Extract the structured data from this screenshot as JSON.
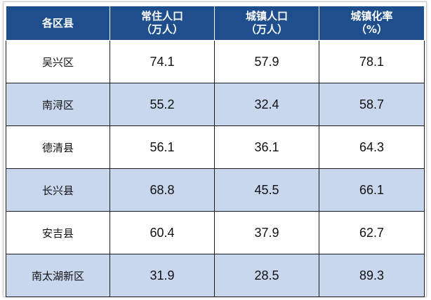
{
  "table": {
    "headers": [
      {
        "line1": "各区县",
        "line2": ""
      },
      {
        "line1": "常住人口",
        "line2": "（万人）"
      },
      {
        "line1": "城镇人口",
        "line2": "（万人）"
      },
      {
        "line1": "城镇化率",
        "line2": "（%）"
      }
    ],
    "rows": [
      {
        "name": "吴兴区",
        "population": "74.1",
        "urban": "57.9",
        "rate": "78.1"
      },
      {
        "name": "南浔区",
        "population": "55.2",
        "urban": "32.4",
        "rate": "58.7"
      },
      {
        "name": "德清县",
        "population": "56.1",
        "urban": "36.1",
        "rate": "64.3"
      },
      {
        "name": "长兴县",
        "population": "68.8",
        "urban": "45.5",
        "rate": "66.1"
      },
      {
        "name": "安吉县",
        "population": "60.4",
        "urban": "37.9",
        "rate": "62.7"
      },
      {
        "name": "南太湖新区",
        "population": "31.9",
        "urban": "28.5",
        "rate": "89.3"
      }
    ],
    "colors": {
      "header_bg": "#1f4e8c",
      "header_text": "#ffffff",
      "row_alt_bg": "#c8d6ee",
      "row_bg": "#ffffff"
    }
  }
}
